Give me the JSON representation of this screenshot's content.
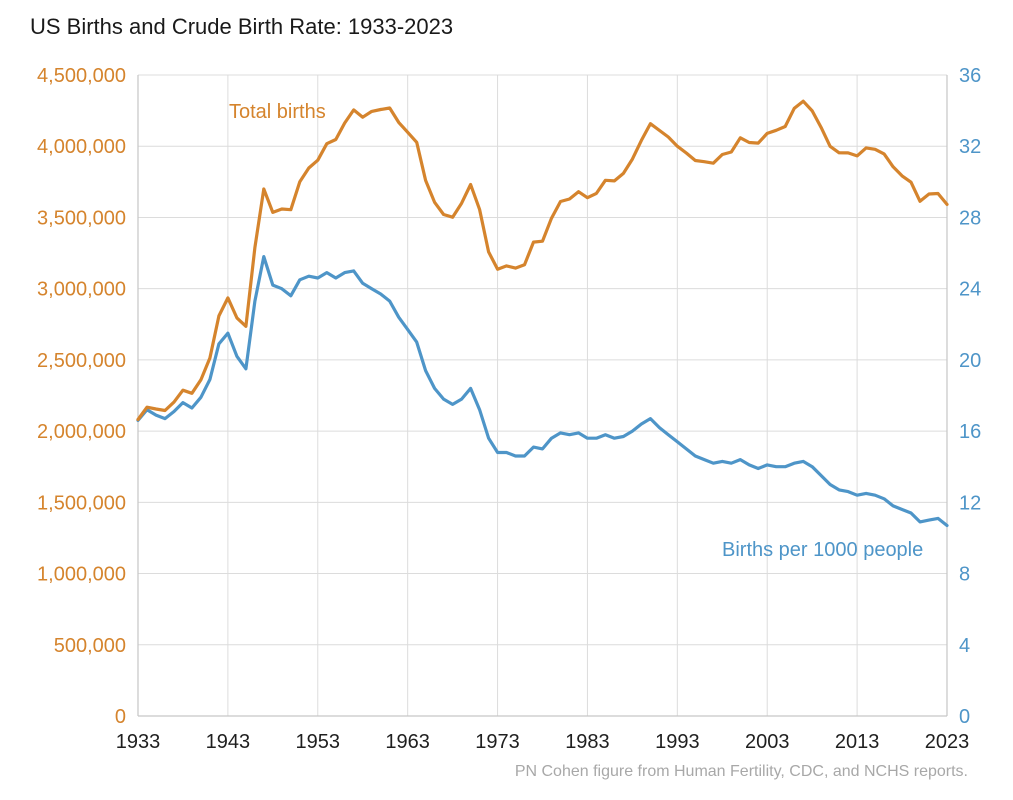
{
  "footer_credit": "PN Cohen figure from Human Fertility, CDC, and NCHS reports.",
  "chart_data": {
    "type": "line",
    "title": "US Births and Crude Birth Rate: 1933-2023",
    "grid": true,
    "legend": "inline series labels",
    "x": [
      1933,
      1934,
      1935,
      1936,
      1937,
      1938,
      1939,
      1940,
      1941,
      1942,
      1943,
      1944,
      1945,
      1946,
      1947,
      1948,
      1949,
      1950,
      1951,
      1952,
      1953,
      1954,
      1955,
      1956,
      1957,
      1958,
      1959,
      1960,
      1961,
      1962,
      1963,
      1964,
      1965,
      1966,
      1967,
      1968,
      1969,
      1970,
      1971,
      1972,
      1973,
      1974,
      1975,
      1976,
      1977,
      1978,
      1979,
      1980,
      1981,
      1982,
      1983,
      1984,
      1985,
      1986,
      1987,
      1988,
      1989,
      1990,
      1991,
      1992,
      1993,
      1994,
      1995,
      1996,
      1997,
      1998,
      1999,
      2000,
      2001,
      2002,
      2003,
      2004,
      2005,
      2006,
      2007,
      2008,
      2009,
      2010,
      2011,
      2012,
      2013,
      2014,
      2015,
      2016,
      2017,
      2018,
      2019,
      2020,
      2021,
      2022,
      2023
    ],
    "x_ticks": [
      1933,
      1943,
      1953,
      1963,
      1973,
      1983,
      1993,
      2003,
      2013,
      2023
    ],
    "x_tick_color": "#1f1f1f",
    "left_axis": {
      "min": 0,
      "max": 4500000,
      "tick_step": 500000,
      "color": "#d5842d",
      "tick_labels": [
        "0",
        "500,000",
        "1,000,000",
        "1,500,000",
        "2,000,000",
        "2,500,000",
        "3,000,000",
        "3,500,000",
        "4,000,000",
        "4,500,000"
      ]
    },
    "right_axis": {
      "min": 0,
      "max": 36,
      "tick_step": 4,
      "color": "#4e95c8",
      "tick_labels": [
        "0",
        "4",
        "8",
        "12",
        "16",
        "20",
        "24",
        "28",
        "32",
        "36"
      ]
    },
    "series": [
      {
        "name": "Total births",
        "axis": "left",
        "color": "#d5842d",
        "values": [
          2081232,
          2167636,
          2155105,
          2144790,
          2203337,
          2286962,
          2265588,
          2360399,
          2513427,
          2808996,
          2934860,
          2794800,
          2735456,
          3288672,
          3699940,
          3535068,
          3559529,
          3554149,
          3750850,
          3846986,
          3902120,
          4017362,
          4047295,
          4163090,
          4254784,
          4203812,
          4244796,
          4257850,
          4268326,
          4167362,
          4098020,
          4027490,
          3760358,
          3606274,
          3520959,
          3501564,
          3600206,
          3731386,
          3555970,
          3258411,
          3136965,
          3159958,
          3144198,
          3167788,
          3326632,
          3333279,
          3494398,
          3612258,
          3629238,
          3680537,
          3638933,
          3669141,
          3760561,
          3756547,
          3809394,
          3909510,
          4040958,
          4158212,
          4110907,
          4065014,
          4000240,
          3952767,
          3899589,
          3891494,
          3880894,
          3941553,
          3959417,
          4058814,
          4025933,
          4021726,
          4089950,
          4112052,
          4138349,
          4265555,
          4316233,
          4247694,
          4130665,
          3999386,
          3953590,
          3952841,
          3932181,
          3988076,
          3978497,
          3945875,
          3855500,
          3791712,
          3747540,
          3613647,
          3664292,
          3667758,
          3591328
        ]
      },
      {
        "name": "Births per 1000 people",
        "axis": "right",
        "color": "#4e95c8",
        "values": [
          16.6,
          17.2,
          16.9,
          16.7,
          17.1,
          17.6,
          17.3,
          17.9,
          18.9,
          20.9,
          21.5,
          20.2,
          19.5,
          23.3,
          25.8,
          24.2,
          24.0,
          23.6,
          24.5,
          24.7,
          24.6,
          24.9,
          24.6,
          24.9,
          25.0,
          24.3,
          24.0,
          23.7,
          23.3,
          22.4,
          21.7,
          21.0,
          19.4,
          18.4,
          17.8,
          17.5,
          17.8,
          18.4,
          17.2,
          15.6,
          14.8,
          14.8,
          14.6,
          14.6,
          15.1,
          15.0,
          15.6,
          15.9,
          15.8,
          15.9,
          15.6,
          15.6,
          15.8,
          15.6,
          15.7,
          16.0,
          16.4,
          16.7,
          16.2,
          15.8,
          15.4,
          15.0,
          14.6,
          14.4,
          14.2,
          14.3,
          14.2,
          14.4,
          14.1,
          13.9,
          14.1,
          14.0,
          14.0,
          14.2,
          14.3,
          14.0,
          13.5,
          13.0,
          12.7,
          12.6,
          12.4,
          12.5,
          12.4,
          12.2,
          11.8,
          11.6,
          11.4,
          10.9,
          11.0,
          11.1,
          10.7
        ]
      }
    ],
    "colors": {
      "grid": "#dcdcdc",
      "axis_border": "#c6c6c6",
      "title": "#1a1a1a",
      "footer": "#a8a8a8",
      "background": "#ffffff"
    }
  }
}
